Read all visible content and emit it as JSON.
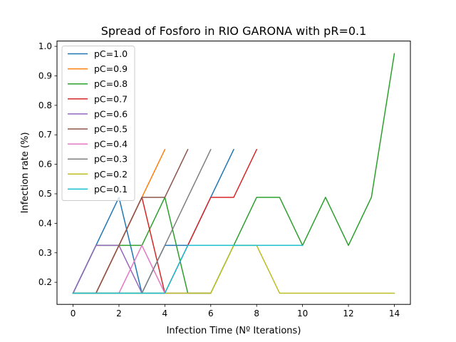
{
  "chart_data": {
    "type": "line",
    "title": "Spread of Fosforo in RIO GARONA with pR=0.1",
    "xlabel": "Infection Time (Nº Iterations)",
    "ylabel": "Infection rate (%)",
    "xlim": [
      -0.7,
      14.7
    ],
    "ylim": [
      0.125,
      1.018
    ],
    "xticks": [
      0,
      2,
      4,
      6,
      8,
      10,
      12,
      14
    ],
    "yticks": [
      0.2,
      0.3,
      0.4,
      0.5,
      0.6,
      0.7,
      0.8,
      0.9,
      1.0
    ],
    "ytick_labels": [
      "0.2",
      "0.3",
      "0.4",
      "0.5",
      "0.6",
      "0.7",
      "0.8",
      "0.9",
      "1.0"
    ],
    "grid": false,
    "legend_position": "top-left",
    "series": [
      {
        "name": "pC=1.0",
        "color": "#1f77b4",
        "x": [
          0,
          1,
          2,
          3,
          4,
          5,
          6,
          7
        ],
        "y": [
          0.163,
          0.325,
          0.488,
          0.163,
          0.325,
          0.325,
          0.488,
          0.65
        ]
      },
      {
        "name": "pC=0.9",
        "color": "#ff7f0e",
        "x": [
          0,
          1,
          2,
          3,
          4
        ],
        "y": [
          0.163,
          0.163,
          0.325,
          0.488,
          0.65
        ]
      },
      {
        "name": "pC=0.8",
        "color": "#2ca02c",
        "x": [
          0,
          1,
          2,
          3,
          4,
          5,
          6,
          7,
          8,
          9,
          10,
          11,
          12,
          13,
          14
        ],
        "y": [
          0.163,
          0.325,
          0.325,
          0.325,
          0.488,
          0.163,
          0.163,
          0.325,
          0.488,
          0.488,
          0.325,
          0.488,
          0.325,
          0.488,
          0.975
        ]
      },
      {
        "name": "pC=0.7",
        "color": "#d62728",
        "x": [
          0,
          1,
          2,
          3,
          4,
          5,
          6,
          7,
          8
        ],
        "y": [
          0.163,
          0.163,
          0.325,
          0.488,
          0.163,
          0.325,
          0.488,
          0.488,
          0.65
        ]
      },
      {
        "name": "pC=0.6",
        "color": "#9467bd",
        "x": [
          0,
          1,
          2,
          3,
          4,
          5,
          6
        ],
        "y": [
          0.163,
          0.325,
          0.325,
          0.163,
          0.163,
          0.163,
          0.163
        ]
      },
      {
        "name": "pC=0.5",
        "color": "#8c564b",
        "x": [
          0,
          1,
          2,
          3,
          4,
          5
        ],
        "y": [
          0.163,
          0.163,
          0.325,
          0.488,
          0.488,
          0.65
        ]
      },
      {
        "name": "pC=0.4",
        "color": "#e377c2",
        "x": [
          0,
          1,
          2,
          3,
          4
        ],
        "y": [
          0.163,
          0.163,
          0.163,
          0.325,
          0.163
        ]
      },
      {
        "name": "pC=0.3",
        "color": "#7f7f7f",
        "x": [
          0,
          1,
          2,
          3,
          4,
          5,
          6
        ],
        "y": [
          0.163,
          0.163,
          0.163,
          0.163,
          0.325,
          0.488,
          0.65
        ]
      },
      {
        "name": "pC=0.2",
        "color": "#bcbd22",
        "x": [
          0,
          1,
          2,
          3,
          4,
          5,
          6,
          7,
          8,
          9,
          10,
          11,
          12,
          13,
          14
        ],
        "y": [
          0.163,
          0.163,
          0.163,
          0.163,
          0.163,
          0.163,
          0.163,
          0.325,
          0.325,
          0.163,
          0.163,
          0.163,
          0.163,
          0.163,
          0.163
        ]
      },
      {
        "name": "pC=0.1",
        "color": "#17becf",
        "x": [
          0,
          1,
          2,
          3,
          4,
          5,
          6,
          7,
          8,
          9,
          10
        ],
        "y": [
          0.163,
          0.163,
          0.163,
          0.163,
          0.163,
          0.325,
          0.325,
          0.325,
          0.325,
          0.325,
          0.325
        ]
      }
    ]
  }
}
